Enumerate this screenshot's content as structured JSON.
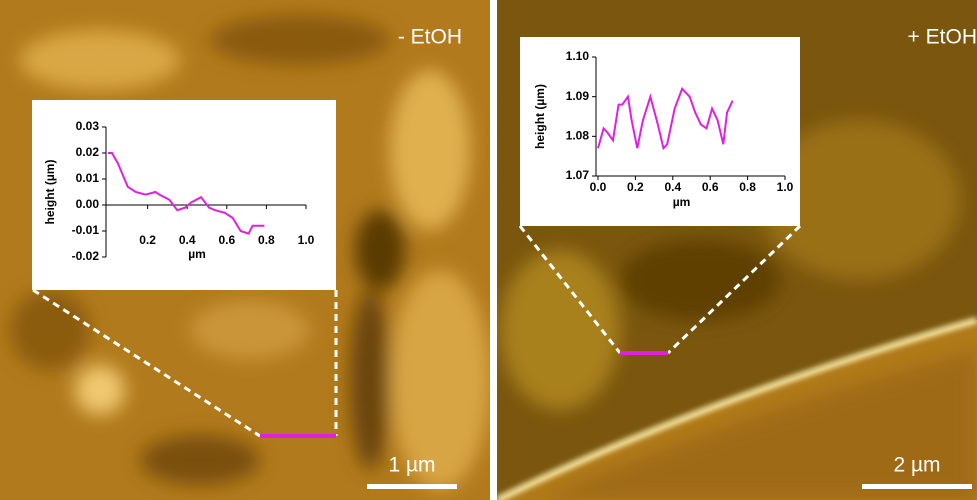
{
  "panels": [
    {
      "label": "- EtOH",
      "scale_bar": "1 µm"
    },
    {
      "label": "+ EtOH",
      "scale_bar": "2 µm"
    }
  ],
  "chart_data": [
    {
      "type": "line",
      "xlabel": "µm",
      "ylabel": "height (µm)",
      "x": [
        0,
        0.02,
        0.05,
        0.1,
        0.14,
        0.19,
        0.24,
        0.26,
        0.31,
        0.35,
        0.39,
        0.42,
        0.47,
        0.51,
        0.54,
        0.59,
        0.63,
        0.67,
        0.71,
        0.73,
        0.77,
        0.79
      ],
      "series": [
        {
          "color": "#e020e0",
          "values": [
            0.02,
            0.02,
            0.016,
            0.007,
            0.005,
            0.004,
            0.005,
            0.004,
            0.002,
            -0.002,
            -0.001,
            0.001,
            0.003,
            -0.001,
            -0.002,
            -0.003,
            -0.005,
            -0.01,
            -0.011,
            -0.008,
            -0.008,
            -0.008
          ]
        }
      ],
      "xlim": [
        0,
        1.0
      ],
      "ylim": [
        -0.02,
        0.03
      ],
      "xticks": [
        0.2,
        0.4,
        0.6,
        0.8,
        {
          "value": 1,
          "label": "1.0"
        }
      ],
      "yticks": [
        0.03,
        0.02,
        0.01,
        {
          "value": 0,
          "label": "0.00"
        },
        -0.01,
        -0.02
      ]
    },
    {
      "type": "line",
      "xlabel": "µm",
      "ylabel": "height (µm)",
      "x": [
        0,
        0.03,
        0.05,
        0.08,
        0.11,
        0.13,
        0.16,
        0.18,
        0.21,
        0.24,
        0.28,
        0.32,
        0.35,
        0.37,
        0.41,
        0.45,
        0.49,
        0.52,
        0.55,
        0.58,
        0.61,
        0.64,
        0.67,
        0.69,
        0.72
      ],
      "series": [
        {
          "color": "#e020e0",
          "values": [
            1.077,
            1.082,
            1.081,
            1.079,
            1.088,
            1.088,
            1.09,
            1.084,
            1.077,
            1.084,
            1.09,
            1.083,
            1.077,
            1.078,
            1.087,
            1.092,
            1.09,
            1.086,
            1.083,
            1.082,
            1.087,
            1.084,
            1.078,
            1.086,
            1.089
          ]
        }
      ],
      "xlim": [
        0,
        1.0
      ],
      "ylim": [
        1.07,
        1.1
      ],
      "xticks": [
        {
          "value": 0,
          "label": "0.0"
        },
        0.2,
        0.4,
        0.6,
        0.8,
        {
          "value": 1,
          "label": "1.0"
        }
      ],
      "yticks": [
        {
          "value": 1.07,
          "label": "1.07"
        },
        1.08,
        1.09,
        {
          "value": 1.1,
          "label": "1.10"
        }
      ]
    }
  ]
}
